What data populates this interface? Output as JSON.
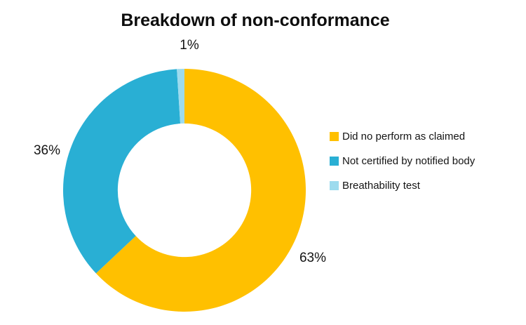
{
  "page": {
    "background": "#FFFFFF"
  },
  "chart_data": {
    "type": "pie",
    "subtype": "donut",
    "title": "Breakdown of non-conformance",
    "slices": [
      {
        "name": "Did no perform as claimed",
        "value": 63,
        "label": "63%",
        "color": "#FFC000"
      },
      {
        "name": "Not certified by notified body",
        "value": 36,
        "label": "36%",
        "color": "#29AFD4"
      },
      {
        "name": "Breathability test",
        "value": 1,
        "label": "1%",
        "color": "#9DDBEE"
      }
    ],
    "start_angle_deg": 0,
    "direction": "clockwise",
    "donut_hole_ratio": 0.55,
    "legend_position": "right",
    "data_label_format": "percent",
    "data_label_position": "outside"
  }
}
